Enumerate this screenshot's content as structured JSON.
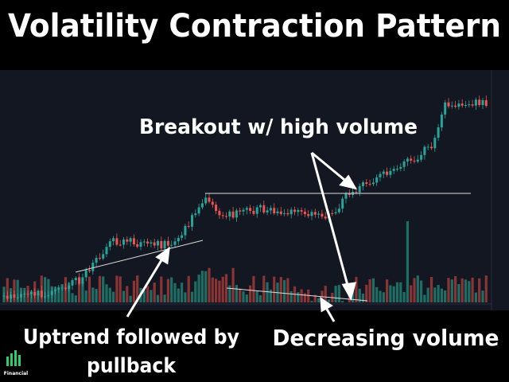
{
  "header": {
    "title": "Volatility Contraction Pattern"
  },
  "annotations": {
    "breakout": "Breakout w/ high volume",
    "uptrend_line1": "Uptrend followed by",
    "uptrend_line2": "pullback",
    "volume": "Decreasing volume"
  },
  "logo": {
    "name": "Financial"
  }
}
